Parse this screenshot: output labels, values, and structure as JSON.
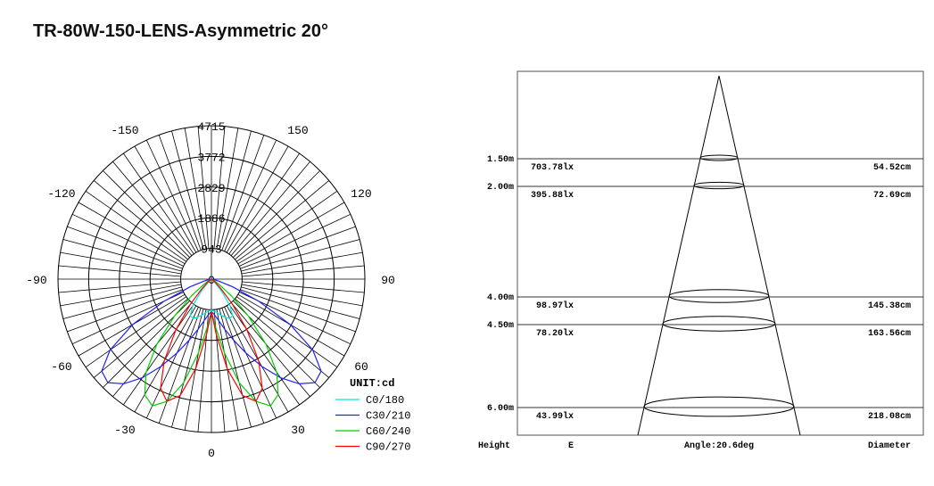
{
  "title": "TR-80W-150-LENS-Asymmetric 20°",
  "chart_data": [
    {
      "type": "polar",
      "unit_label": "UNIT:cd",
      "radial_ticks": [
        0,
        943,
        1886,
        2829,
        3772,
        4715
      ],
      "radial_tick_labels": [
        "0",
        "943",
        "1886",
        "2829",
        "3772",
        "4715"
      ],
      "angle_labels": [
        "0",
        "30",
        "60",
        "90",
        "120",
        "150",
        "-150",
        "-120",
        "-90",
        "-60",
        "-30"
      ],
      "angle_label_values": [
        0,
        30,
        60,
        90,
        120,
        150,
        -150,
        -120,
        -90,
        -60,
        -30
      ],
      "angles_deg": [
        0,
        5,
        10,
        15,
        20,
        25,
        30,
        35,
        40,
        45,
        50,
        55,
        60,
        65,
        70,
        75,
        80,
        85,
        90
      ],
      "symmetric": true,
      "series": [
        {
          "name": "C0/180",
          "color": "#00e5e5",
          "values": [
            950,
            980,
            1050,
            1150,
            1250,
            1330,
            1300,
            1000,
            500,
            150,
            0,
            0,
            0,
            0,
            0,
            0,
            0,
            0,
            0
          ]
        },
        {
          "name": "C30/210",
          "color": "#2020ff",
          "values": [
            1000,
            1100,
            1300,
            1600,
            2000,
            2500,
            3100,
            3700,
            4200,
            4500,
            4400,
            3800,
            2800,
            1600,
            700,
            250,
            80,
            20,
            0
          ]
        },
        {
          "name": "C60/240",
          "color": "#00d000",
          "values": [
            1000,
            1500,
            2300,
            3300,
            4000,
            4300,
            4100,
            3500,
            2600,
            1600,
            800,
            300,
            100,
            30,
            0,
            0,
            0,
            0,
            0
          ]
        },
        {
          "name": "C90/270",
          "color": "#ff0000",
          "values": [
            1000,
            1700,
            2800,
            3700,
            4000,
            3700,
            2900,
            1900,
            1000,
            400,
            150,
            50,
            0,
            0,
            0,
            0,
            0,
            0,
            0
          ]
        }
      ]
    },
    {
      "type": "table",
      "angle_label": "Angle:20.6deg",
      "column_headers": {
        "height": "Height",
        "e": "E",
        "diameter": "Diameter"
      },
      "rows": [
        {
          "height": "1.50m",
          "height_m": 1.5,
          "e": "703.78lx",
          "diameter": "54.52cm"
        },
        {
          "height": "2.00m",
          "height_m": 2.0,
          "e": "395.88lx",
          "diameter": "72.69cm"
        },
        {
          "height": "4.00m",
          "height_m": 4.0,
          "e": "98.97lx",
          "diameter": "145.38cm"
        },
        {
          "height": "4.50m",
          "height_m": 4.5,
          "e": "78.20lx",
          "diameter": "163.56cm"
        },
        {
          "height": "6.00m",
          "height_m": 6.0,
          "e": "43.99lx",
          "diameter": "218.08cm"
        }
      ]
    }
  ]
}
